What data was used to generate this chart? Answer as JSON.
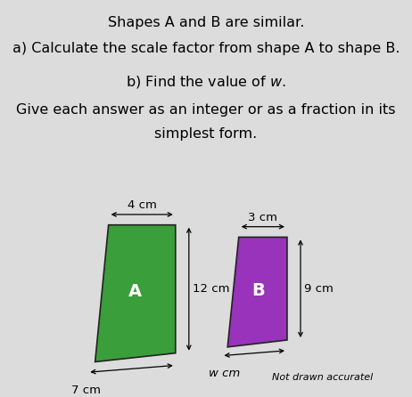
{
  "background_color": "#dcdcdc",
  "title_line1": "Shapes A and B are similar.",
  "question_a": "a) Calculate the scale factor from shape A to shape B.",
  "question_b_display": "b) Find the value of $w$.",
  "instruction_line1": "Give each answer as an integer or as a fraction in its",
  "instruction_line2": "simplest form.",
  "not_drawn": "Not drawn accuratel",
  "shape_A": {
    "label": "A",
    "color": "#3a9e3a",
    "top_width_label": "4 cm",
    "right_height_label": "12 cm",
    "bottom_width_label": "7 cm"
  },
  "shape_B": {
    "label": "B",
    "color": "#9933bb",
    "top_width_label": "3 cm",
    "right_height_label": "9 cm",
    "bottom_width_label": "w cm"
  },
  "text_fontsize": 11.5,
  "dim_fontsize": 9.5
}
